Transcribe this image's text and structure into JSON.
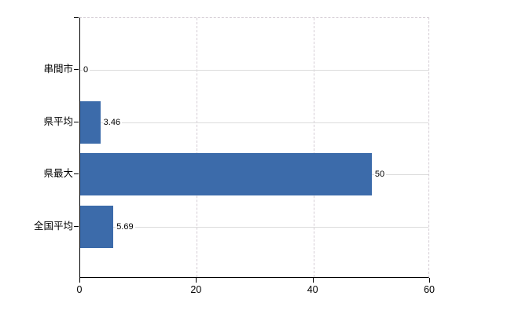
{
  "chart_data": {
    "type": "bar",
    "orientation": "horizontal",
    "title": "",
    "xlabel": "",
    "ylabel": "",
    "categories": [
      "串間市",
      "県平均",
      "県最大",
      "全国平均"
    ],
    "values": [
      0,
      3.46,
      50,
      5.69
    ],
    "value_labels": [
      "0",
      "3.46",
      "50",
      "5.69"
    ],
    "xlim": [
      0,
      60
    ],
    "x_ticks": [
      0,
      20,
      40,
      60
    ],
    "x_tick_labels": [
      "0",
      "20",
      "40",
      "60"
    ],
    "grid": "on",
    "legend": "none",
    "bar_color": "#3c6baa",
    "grid_color": "#dcdcdc",
    "frame_dash_color": "#d4ccd4",
    "axis_color": "#000000",
    "text_color": "#000000",
    "background_color": "#ffffff"
  }
}
